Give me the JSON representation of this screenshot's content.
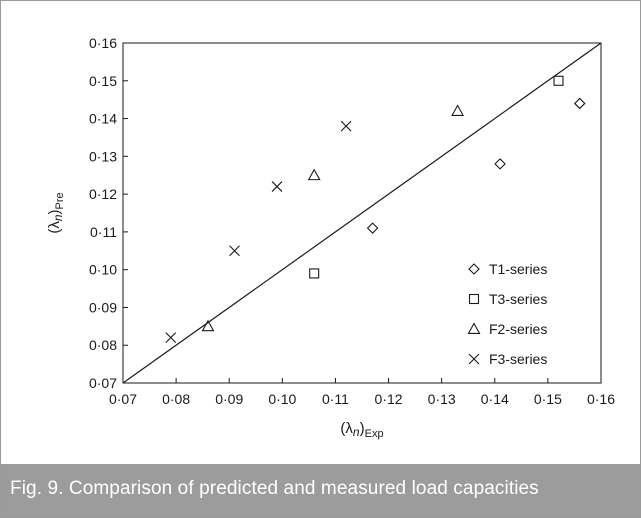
{
  "caption": "Fig. 9. Comparison of predicted and measured load capacities",
  "chart_data": {
    "type": "scatter",
    "title": "",
    "xlabel": {
      "base": "(λ",
      "sub_inner": "n",
      "close": ")",
      "sub": "Exp"
    },
    "ylabel": {
      "base": "(λ",
      "sub_inner": "n",
      "close": ")",
      "sub": "Pre"
    },
    "xlim": [
      0.07,
      0.16
    ],
    "ylim": [
      0.07,
      0.16
    ],
    "xticks": [
      0.07,
      0.08,
      0.09,
      0.1,
      0.11,
      0.12,
      0.13,
      0.14,
      0.15,
      0.16
    ],
    "yticks": [
      0.07,
      0.08,
      0.09,
      0.1,
      0.11,
      0.12,
      0.13,
      0.14,
      0.15,
      0.16
    ],
    "xtick_labels": [
      "0·07",
      "0·08",
      "0·09",
      "0·10",
      "0·11",
      "0·12",
      "0·13",
      "0·14",
      "0·15",
      "0·16"
    ],
    "ytick_labels": [
      "0·07",
      "0·08",
      "0·09",
      "0·10",
      "0·11",
      "0·12",
      "0·13",
      "0·14",
      "0·15",
      "0·16"
    ],
    "reference_line": {
      "type": "y=x",
      "from": [
        0.07,
        0.07
      ],
      "to": [
        0.16,
        0.16
      ]
    },
    "grid": false,
    "legend_position": "bottom-right",
    "series": [
      {
        "name": "T1-series",
        "marker": "diamond",
        "points": [
          [
            0.117,
            0.111
          ],
          [
            0.141,
            0.128
          ],
          [
            0.156,
            0.144
          ]
        ]
      },
      {
        "name": "T3-series",
        "marker": "square",
        "points": [
          [
            0.106,
            0.099
          ],
          [
            0.152,
            0.15
          ]
        ]
      },
      {
        "name": "F2-series",
        "marker": "triangle",
        "points": [
          [
            0.086,
            0.085
          ],
          [
            0.106,
            0.125
          ],
          [
            0.133,
            0.142
          ]
        ]
      },
      {
        "name": "F3-series",
        "marker": "cross",
        "points": [
          [
            0.079,
            0.082
          ],
          [
            0.091,
            0.105
          ],
          [
            0.099,
            0.122
          ],
          [
            0.112,
            0.138
          ]
        ]
      }
    ]
  }
}
